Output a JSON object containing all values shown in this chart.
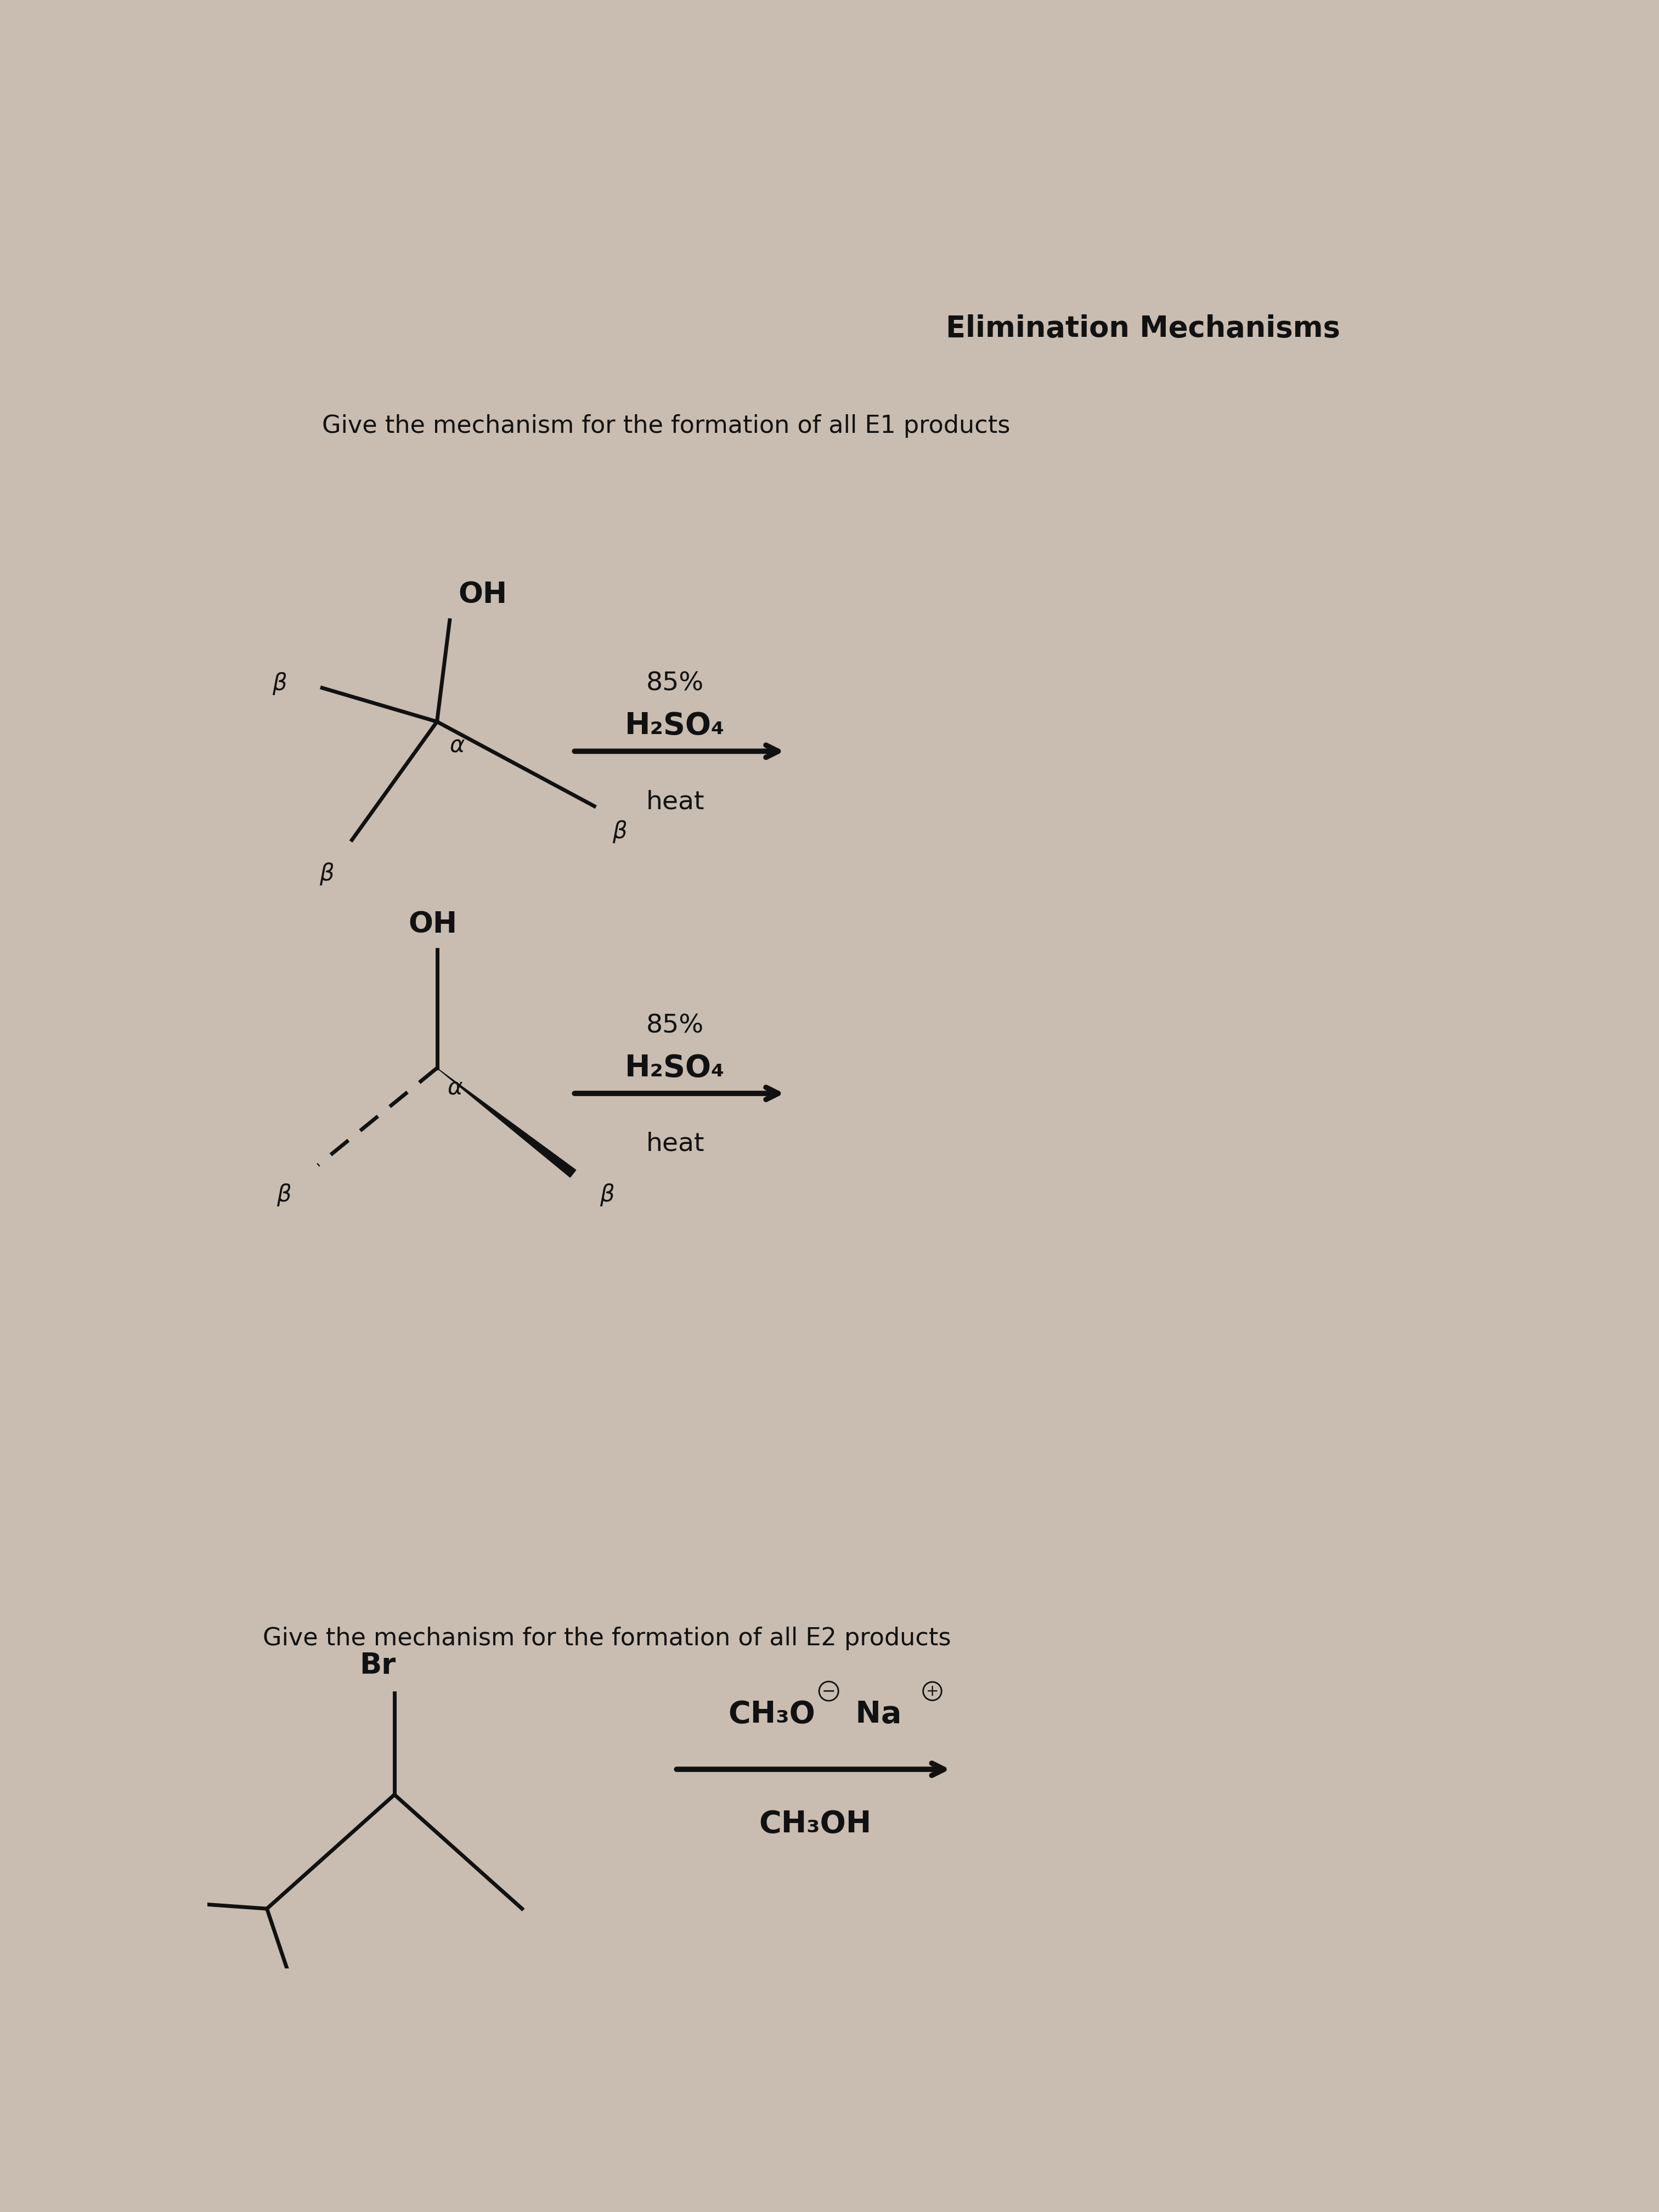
{
  "bg_color": "#c8bdb0",
  "text_color": "#111111",
  "title": "Elimination Mechanisms",
  "title_fontsize": 38,
  "title_bold": true,
  "e1_label": "Give the mechanism for the formation of all E1 products",
  "e1_label_fontsize": 32,
  "e2_label": "Give the mechanism for the formation of all E2 products",
  "e2_label_fontsize": 32,
  "reagent1_line1": "85%",
  "reagent1_line2": "H₂SO₄",
  "reagent1_line3": "heat",
  "reagent2_line1": "85%",
  "reagent2_line2": "H₂SO₄",
  "reagent2_line3": "heat",
  "reagent3_line1_a": "CH₃O",
  "reagent3_line1_b": "−",
  "reagent3_line1_c": " Na",
  "reagent3_line1_d": "+",
  "reagent3_line2": "CH₃OH",
  "alpha_label": "α",
  "beta_label": "β",
  "OH_label": "OH",
  "Br_label": "Br"
}
